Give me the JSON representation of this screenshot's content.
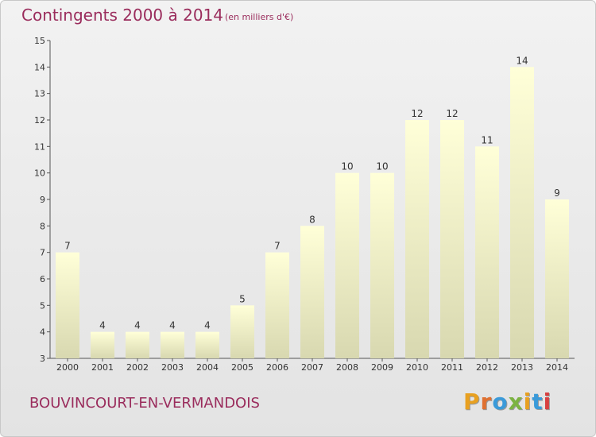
{
  "header": {
    "title": "Contingents 2000 à 2014",
    "unit": "(en milliers d'€)"
  },
  "footer": {
    "commune": "BOUVINCOURT-EN-VERMANDOIS",
    "logo": "Proxiti",
    "logo_colors": [
      "#e8a020",
      "#e07030",
      "#3a9ad9",
      "#7cb342",
      "#e8a020",
      "#3a9ad9",
      "#d84040"
    ]
  },
  "chart_data": {
    "type": "bar",
    "title": "Contingents 2000 à 2014",
    "subtitle": "(en milliers d'€)",
    "categories": [
      "2000",
      "2001",
      "2002",
      "2003",
      "2004",
      "2005",
      "2006",
      "2007",
      "2008",
      "2009",
      "2010",
      "2011",
      "2012",
      "2013",
      "2014"
    ],
    "values": [
      7,
      4,
      4,
      4,
      4,
      5,
      7,
      8,
      10,
      10,
      12,
      12,
      11,
      14,
      9
    ],
    "ylim": [
      3,
      15
    ],
    "yticks": [
      3,
      4,
      5,
      6,
      7,
      8,
      9,
      10,
      11,
      12,
      13,
      14,
      15
    ],
    "grid": false,
    "bar_color_top": "#ffffd8",
    "bar_color_bottom": "#d8d8b0"
  }
}
